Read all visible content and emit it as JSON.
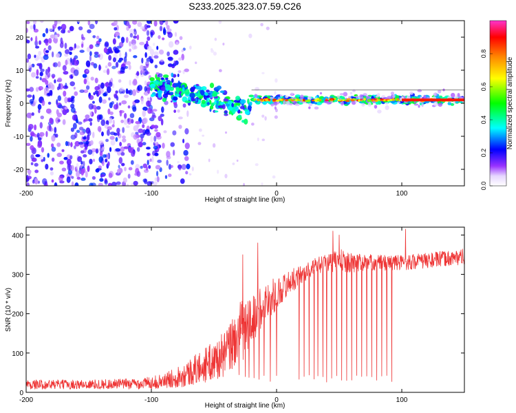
{
  "chart_data": [
    {
      "type": "heatmap",
      "title": "S233.2025.323.07.59.C26",
      "xlabel": "Height of straight line (km)",
      "ylabel": "Frequency (Hz)",
      "xlim": [
        -200,
        150
      ],
      "ylim": [
        -25,
        25
      ],
      "xticks": [
        -200,
        -100,
        0,
        100
      ],
      "xtick_labels": [
        "-200",
        "-100",
        "0",
        "100"
      ],
      "yticks": [
        -20,
        -10,
        0,
        10,
        20
      ],
      "ytick_labels": [
        "-20",
        "-10",
        "0",
        "10",
        "20"
      ],
      "colorbar": {
        "label": "Normalized spectral amplitude",
        "range": [
          0,
          1
        ],
        "ticks": [
          "0.0",
          "0.2",
          "0.4",
          "0.6",
          "0.8"
        ],
        "tick_values": [
          0.0,
          0.2,
          0.4,
          0.6,
          0.8
        ],
        "colors": [
          "#ffffff",
          "#9933ff",
          "#0000ff",
          "#00ffff",
          "#00ff00",
          "#ffff00",
          "#ff8800",
          "#ff0000",
          "#ff33cc"
        ]
      },
      "noise_region": {
        "x_range": [
          -200,
          -100
        ],
        "f_range": [
          -25,
          25
        ],
        "amplitude": [
          0.05,
          0.25
        ]
      },
      "signal_track": [
        {
          "x": -100,
          "f": 5
        },
        {
          "x": -80,
          "f": 4
        },
        {
          "x": -60,
          "f": 2.5
        },
        {
          "x": -40,
          "f": 0
        },
        {
          "x": -25,
          "f": -2
        },
        {
          "x": -20,
          "f": 1
        },
        {
          "x": 0,
          "f": 1
        },
        {
          "x": 50,
          "f": 1
        },
        {
          "x": 100,
          "f": 1
        },
        {
          "x": 150,
          "f": 1
        }
      ]
    },
    {
      "type": "line",
      "xlabel": "Height of straight line (km)",
      "ylabel": "SNR (10 * v/v)",
      "xlim": [
        -200,
        150
      ],
      "ylim": [
        0,
        420
      ],
      "xticks": [
        -200,
        -100,
        0,
        100
      ],
      "xtick_labels": [
        "-200",
        "-100",
        "0",
        "100"
      ],
      "yticks": [
        0,
        100,
        200,
        300,
        400
      ],
      "ytick_labels": [
        "0",
        "100",
        "200",
        "300",
        "400"
      ],
      "color": "#ee3333",
      "series": [
        {
          "name": "SNR",
          "x": [
            -200,
            -150,
            -110,
            -90,
            -70,
            -50,
            -40,
            -30,
            -20,
            -15,
            -10,
            0,
            10,
            20,
            30,
            40,
            50,
            60,
            80,
            100,
            120,
            150
          ],
          "mean": [
            20,
            20,
            22,
            28,
            50,
            80,
            100,
            150,
            180,
            200,
            230,
            250,
            280,
            300,
            320,
            330,
            335,
            330,
            330,
            330,
            335,
            345
          ],
          "spread": [
            12,
            12,
            14,
            18,
            35,
            50,
            60,
            80,
            70,
            60,
            55,
            40,
            30,
            25,
            20,
            25,
            30,
            25,
            20,
            20,
            20,
            20
          ]
        }
      ],
      "dropouts": [
        -30,
        -25,
        -22,
        -18,
        -14,
        -10,
        -5,
        0,
        18,
        22,
        26,
        30,
        33,
        37,
        40,
        44,
        48,
        52,
        56,
        60,
        64,
        68,
        72,
        76,
        80,
        84,
        88,
        92
      ],
      "spikes": [
        {
          "x": -15,
          "y": 380
        },
        {
          "x": -27,
          "y": 350
        },
        {
          "x": 45,
          "y": 410
        },
        {
          "x": 103,
          "y": 415
        },
        {
          "x": 50,
          "y": 400
        }
      ]
    }
  ]
}
